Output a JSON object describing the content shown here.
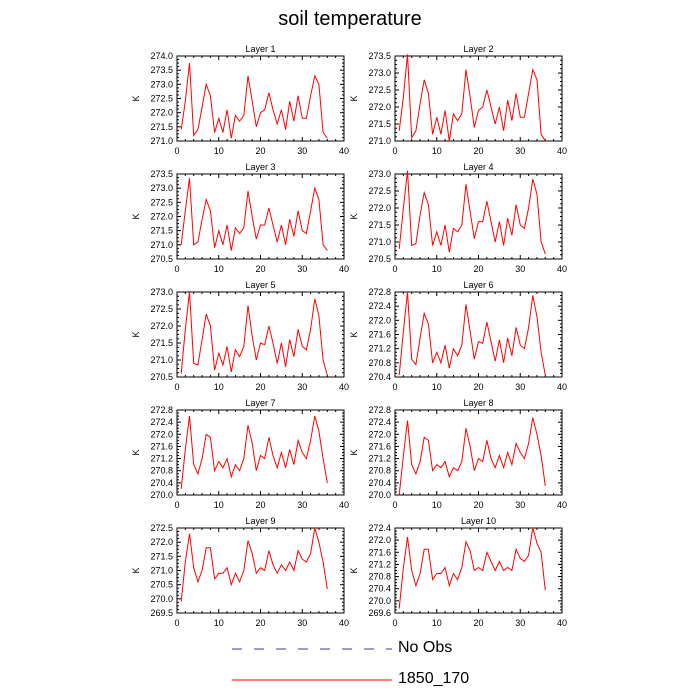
{
  "title": "soil temperature",
  "legend": [
    {
      "label": "No Obs",
      "color": "#3a3aa8",
      "style": "dashed"
    },
    {
      "label": "1850_170",
      "color": "#ff0000",
      "style": "solid"
    }
  ],
  "chart_data": [
    {
      "type": "line",
      "title": "Layer 1",
      "ylabel": "K",
      "xlim": [
        0,
        40
      ],
      "ylim": [
        271.0,
        274.0
      ],
      "xticks": [
        0,
        10,
        20,
        30,
        40
      ],
      "yticks": [
        "271.0",
        "271.5",
        "272.0",
        "272.5",
        "273.0",
        "273.5",
        "274.0"
      ],
      "series": [
        {
          "color": "#ff0000",
          "x": [
            1,
            2,
            3,
            4,
            5,
            6,
            7,
            8,
            9,
            10,
            11,
            12,
            13,
            14,
            15,
            16,
            17,
            18,
            19,
            20,
            21,
            22,
            23,
            24,
            25,
            26,
            27,
            28,
            29,
            30,
            31,
            32,
            33,
            34,
            35,
            36
          ],
          "values": [
            271.4,
            272.4,
            273.75,
            271.2,
            271.4,
            272.2,
            273.0,
            272.6,
            271.3,
            271.8,
            271.3,
            272.1,
            271.1,
            271.9,
            271.7,
            271.9,
            273.3,
            272.4,
            271.5,
            272.0,
            272.1,
            272.7,
            272.1,
            271.6,
            272.1,
            271.4,
            272.4,
            271.7,
            272.6,
            271.8,
            271.8,
            272.6,
            273.3,
            273.0,
            271.3,
            271.1
          ]
        }
      ]
    },
    {
      "type": "line",
      "title": "Layer 2",
      "ylabel": "K",
      "xlim": [
        0,
        40
      ],
      "ylim": [
        271.0,
        273.5
      ],
      "xticks": [
        0,
        10,
        20,
        30,
        40
      ],
      "yticks": [
        "271.0",
        "271.5",
        "272.0",
        "272.5",
        "273.0",
        "273.5"
      ],
      "series": [
        {
          "color": "#ff0000",
          "x": [
            1,
            2,
            3,
            4,
            5,
            6,
            7,
            8,
            9,
            10,
            11,
            12,
            13,
            14,
            15,
            16,
            17,
            18,
            19,
            20,
            21,
            22,
            23,
            24,
            25,
            26,
            27,
            28,
            29,
            30,
            31,
            32,
            33,
            34,
            35,
            36
          ],
          "values": [
            271.3,
            272.3,
            273.55,
            271.1,
            271.3,
            272.1,
            272.8,
            272.4,
            271.2,
            271.7,
            271.2,
            271.9,
            271.0,
            271.8,
            271.6,
            271.8,
            273.1,
            272.3,
            271.4,
            271.9,
            272.0,
            272.5,
            272.0,
            271.5,
            272.0,
            271.3,
            272.2,
            271.6,
            272.4,
            271.7,
            271.7,
            272.4,
            273.1,
            272.8,
            271.2,
            271.0
          ]
        }
      ]
    },
    {
      "type": "line",
      "title": "Layer 3",
      "ylabel": "K",
      "xlim": [
        0,
        40
      ],
      "ylim": [
        270.5,
        273.5
      ],
      "xticks": [
        0,
        10,
        20,
        30,
        40
      ],
      "yticks": [
        "270.5",
        "271.0",
        "271.5",
        "272.0",
        "272.5",
        "273.0",
        "273.5"
      ],
      "series": [
        {
          "color": "#ff0000",
          "x": [
            1,
            2,
            3,
            4,
            5,
            6,
            7,
            8,
            9,
            10,
            11,
            12,
            13,
            14,
            15,
            16,
            17,
            18,
            19,
            20,
            21,
            22,
            23,
            24,
            25,
            26,
            27,
            28,
            29,
            30,
            31,
            32,
            33,
            34,
            35,
            36
          ],
          "values": [
            271.0,
            272.2,
            273.35,
            271.0,
            271.1,
            271.9,
            272.6,
            272.2,
            270.9,
            271.5,
            271.0,
            271.7,
            270.8,
            271.6,
            271.4,
            271.6,
            272.9,
            272.0,
            271.2,
            271.7,
            271.7,
            272.3,
            271.7,
            271.1,
            271.7,
            271.0,
            271.9,
            271.3,
            272.2,
            271.5,
            271.4,
            272.2,
            273.0,
            272.6,
            271.0,
            270.8
          ]
        }
      ]
    },
    {
      "type": "line",
      "title": "Layer 4",
      "ylabel": "K",
      "xlim": [
        0,
        40
      ],
      "ylim": [
        270.5,
        273.0
      ],
      "xticks": [
        0,
        10,
        20,
        30,
        40
      ],
      "yticks": [
        "270.5",
        "271.0",
        "271.5",
        "272.0",
        "272.5",
        "273.0"
      ],
      "series": [
        {
          "color": "#ff0000",
          "x": [
            1,
            2,
            3,
            4,
            5,
            6,
            7,
            8,
            9,
            10,
            11,
            12,
            13,
            14,
            15,
            16,
            17,
            18,
            19,
            20,
            21,
            22,
            23,
            24,
            25,
            26,
            27,
            28,
            29,
            30,
            31,
            32,
            33,
            34,
            35,
            36
          ],
          "values": [
            270.8,
            272.0,
            273.1,
            270.9,
            270.95,
            271.8,
            272.45,
            272.1,
            270.9,
            271.3,
            270.9,
            271.5,
            270.7,
            271.4,
            271.3,
            271.5,
            272.7,
            271.9,
            271.1,
            271.6,
            271.6,
            272.2,
            271.6,
            271.0,
            271.6,
            270.9,
            271.7,
            271.2,
            272.1,
            271.5,
            271.4,
            272.0,
            272.85,
            272.4,
            271.0,
            270.65
          ]
        }
      ]
    },
    {
      "type": "line",
      "title": "Layer 5",
      "ylabel": "K",
      "xlim": [
        0,
        40
      ],
      "ylim": [
        270.5,
        273.0
      ],
      "xticks": [
        0,
        10,
        20,
        30,
        40
      ],
      "yticks": [
        "270.5",
        "271.0",
        "271.5",
        "272.0",
        "272.5",
        "273.0"
      ],
      "series": [
        {
          "color": "#ff0000",
          "x": [
            1,
            2,
            3,
            4,
            5,
            6,
            7,
            8,
            9,
            10,
            11,
            12,
            13,
            14,
            15,
            16,
            17,
            18,
            19,
            20,
            21,
            22,
            23,
            24,
            25,
            26,
            27,
            28,
            29,
            30,
            31,
            32,
            33,
            34,
            35,
            36
          ],
          "values": [
            270.6,
            271.9,
            273.0,
            270.9,
            270.85,
            271.6,
            272.35,
            272.0,
            270.7,
            271.2,
            270.85,
            271.4,
            270.65,
            271.3,
            271.1,
            271.4,
            272.6,
            271.7,
            271.0,
            271.5,
            271.45,
            272.0,
            271.5,
            270.9,
            271.5,
            270.8,
            271.6,
            271.1,
            271.9,
            271.4,
            271.3,
            271.9,
            272.8,
            272.3,
            271.0,
            270.55
          ]
        }
      ]
    },
    {
      "type": "line",
      "title": "Layer 6",
      "ylabel": "K",
      "xlim": [
        0,
        40
      ],
      "ylim": [
        270.4,
        272.8
      ],
      "xticks": [
        0,
        10,
        20,
        30,
        40
      ],
      "yticks": [
        "270.4",
        "270.8",
        "271.2",
        "271.6",
        "272.0",
        "272.4",
        "272.8"
      ],
      "series": [
        {
          "color": "#ff0000",
          "x": [
            1,
            2,
            3,
            4,
            5,
            6,
            7,
            8,
            9,
            10,
            11,
            12,
            13,
            14,
            15,
            16,
            17,
            18,
            19,
            20,
            21,
            22,
            23,
            24,
            25,
            26,
            27,
            28,
            29,
            30,
            31,
            32,
            33,
            34,
            35,
            36
          ],
          "values": [
            270.45,
            271.7,
            272.8,
            270.9,
            270.75,
            271.5,
            272.2,
            271.9,
            270.8,
            271.1,
            270.8,
            271.3,
            270.65,
            271.2,
            271.0,
            271.3,
            272.45,
            271.7,
            270.9,
            271.4,
            271.35,
            271.95,
            271.4,
            270.85,
            271.45,
            270.8,
            271.5,
            271.0,
            271.8,
            271.3,
            271.2,
            271.8,
            272.7,
            272.1,
            271.1,
            270.45
          ]
        }
      ]
    },
    {
      "type": "line",
      "title": "Layer 7",
      "ylabel": "K",
      "xlim": [
        0,
        40
      ],
      "ylim": [
        270.0,
        272.8
      ],
      "xticks": [
        0,
        10,
        20,
        30,
        40
      ],
      "yticks": [
        "270.0",
        "270.4",
        "270.8",
        "271.2",
        "271.6",
        "272.0",
        "272.4",
        "272.8"
      ],
      "series": [
        {
          "color": "#ff0000",
          "x": [
            1,
            2,
            3,
            4,
            5,
            6,
            7,
            8,
            9,
            10,
            11,
            12,
            13,
            14,
            15,
            16,
            17,
            18,
            19,
            20,
            21,
            22,
            23,
            24,
            25,
            26,
            27,
            28,
            29,
            30,
            31,
            32,
            33,
            34,
            35,
            36
          ],
          "values": [
            270.2,
            271.5,
            272.6,
            271.0,
            270.7,
            271.2,
            272.0,
            271.9,
            270.8,
            271.1,
            270.9,
            271.2,
            270.6,
            271.0,
            270.8,
            271.2,
            272.3,
            271.7,
            270.8,
            271.3,
            271.2,
            271.9,
            271.3,
            270.9,
            271.4,
            270.9,
            271.5,
            271.0,
            271.8,
            271.4,
            271.2,
            271.8,
            272.6,
            272.1,
            271.2,
            270.4
          ]
        }
      ]
    },
    {
      "type": "line",
      "title": "Layer 8",
      "ylabel": "K",
      "xlim": [
        0,
        40
      ],
      "ylim": [
        270.0,
        272.8
      ],
      "xticks": [
        0,
        10,
        20,
        30,
        40
      ],
      "yticks": [
        "270.0",
        "270.4",
        "270.8",
        "271.2",
        "271.6",
        "272.0",
        "272.4",
        "272.8"
      ],
      "series": [
        {
          "color": "#ff0000",
          "x": [
            1,
            2,
            3,
            4,
            5,
            6,
            7,
            8,
            9,
            10,
            11,
            12,
            13,
            14,
            15,
            16,
            17,
            18,
            19,
            20,
            21,
            22,
            23,
            24,
            25,
            26,
            27,
            28,
            29,
            30,
            31,
            32,
            33,
            34,
            35,
            36
          ],
          "values": [
            270.0,
            271.3,
            272.45,
            271.0,
            270.7,
            271.1,
            271.9,
            271.8,
            270.8,
            271.0,
            270.9,
            271.1,
            270.6,
            270.9,
            270.8,
            271.1,
            272.2,
            271.6,
            270.8,
            271.2,
            271.1,
            271.8,
            271.2,
            270.9,
            271.3,
            270.9,
            271.4,
            271.0,
            271.7,
            271.4,
            271.2,
            271.7,
            272.55,
            272.0,
            271.3,
            270.3
          ]
        }
      ]
    },
    {
      "type": "line",
      "title": "Layer 9",
      "ylabel": "K",
      "xlim": [
        0,
        40
      ],
      "ylim": [
        269.5,
        272.5
      ],
      "xticks": [
        0,
        10,
        20,
        30,
        40
      ],
      "yticks": [
        "269.5",
        "270.0",
        "270.5",
        "271.0",
        "271.5",
        "272.0",
        "272.5"
      ],
      "series": [
        {
          "color": "#ff0000",
          "x": [
            1,
            2,
            3,
            4,
            5,
            6,
            7,
            8,
            9,
            10,
            11,
            12,
            13,
            14,
            15,
            16,
            17,
            18,
            19,
            20,
            21,
            22,
            23,
            24,
            25,
            26,
            27,
            28,
            29,
            30,
            31,
            32,
            33,
            34,
            35,
            36
          ],
          "values": [
            269.9,
            271.3,
            272.3,
            271.1,
            270.6,
            271.0,
            271.8,
            271.8,
            270.7,
            270.9,
            270.9,
            271.1,
            270.5,
            270.9,
            270.6,
            271.0,
            272.05,
            271.6,
            270.9,
            271.1,
            271.0,
            271.7,
            271.2,
            270.9,
            271.2,
            271.0,
            271.3,
            271.0,
            271.7,
            271.4,
            271.3,
            271.6,
            272.5,
            272.0,
            271.3,
            270.35
          ]
        }
      ]
    },
    {
      "type": "line",
      "title": "Layer 10",
      "ylabel": "K",
      "xlim": [
        0,
        40
      ],
      "ylim": [
        269.6,
        272.4
      ],
      "xticks": [
        0,
        10,
        20,
        30,
        40
      ],
      "yticks": [
        "269.6",
        "270.0",
        "270.4",
        "270.8",
        "271.2",
        "271.6",
        "272.0",
        "272.4"
      ],
      "series": [
        {
          "color": "#ff0000",
          "x": [
            1,
            2,
            3,
            4,
            5,
            6,
            7,
            8,
            9,
            10,
            11,
            12,
            13,
            14,
            15,
            16,
            17,
            18,
            19,
            20,
            21,
            22,
            23,
            24,
            25,
            26,
            27,
            28,
            29,
            30,
            31,
            32,
            33,
            34,
            35,
            36
          ],
          "values": [
            269.75,
            271.1,
            272.1,
            271.0,
            270.5,
            270.9,
            271.7,
            271.7,
            270.7,
            270.9,
            270.9,
            271.1,
            270.5,
            270.9,
            270.7,
            271.1,
            271.95,
            271.65,
            271.0,
            271.1,
            271.0,
            271.6,
            271.3,
            271.0,
            271.3,
            271.0,
            271.1,
            271.0,
            271.7,
            271.4,
            271.3,
            271.5,
            272.4,
            271.9,
            271.6,
            270.35
          ]
        }
      ]
    }
  ]
}
